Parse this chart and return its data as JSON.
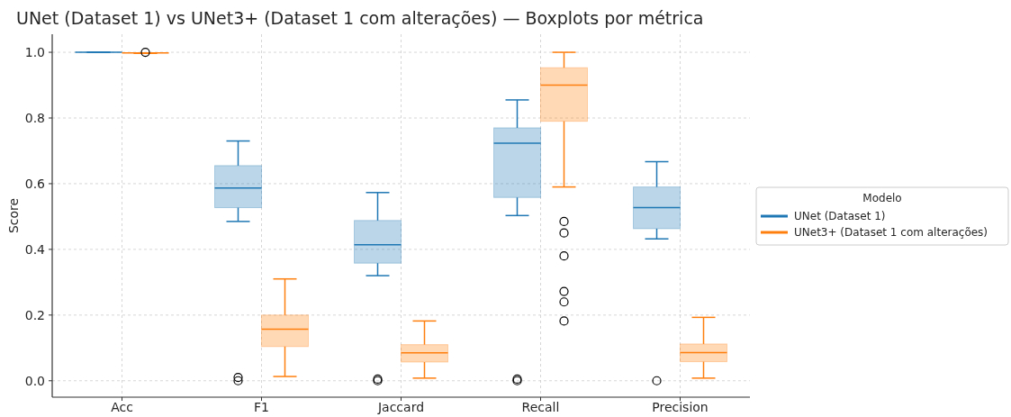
{
  "chart_data": {
    "type": "box",
    "title": "UNet (Dataset 1) vs UNet3+ (Dataset 1 com alterações) — Boxplots por métrica",
    "ylabel": "Score",
    "legend_title": "Modelo",
    "legend": "right",
    "grid": true,
    "categories": [
      "Acc",
      "F1",
      "Jaccard",
      "Recall",
      "Precision"
    ],
    "ylim": [
      -0.05,
      1.055
    ],
    "yticks": [
      {
        "value": 0,
        "label": "0.0"
      },
      {
        "value": 0.2,
        "label": "0.2"
      },
      {
        "value": 0.4,
        "label": "0.4"
      },
      {
        "value": 0.6,
        "label": "0.6"
      },
      {
        "value": 0.8,
        "label": "0.8"
      },
      {
        "value": 1,
        "label": "1.0"
      }
    ],
    "series": [
      {
        "name": "UNet (Dataset 1)",
        "color": "#1f77b4",
        "boxes": [
          {
            "low": 1,
            "q1": 1,
            "median": 1,
            "q3": 1,
            "high": 1
          },
          {
            "low": 0.485,
            "q1": 0.527,
            "median": 0.587,
            "q3": 0.655,
            "high": 0.73,
            "outliers": [
              0,
              0.01
            ]
          },
          {
            "low": 0.32,
            "q1": 0.358,
            "median": 0.414,
            "q3": 0.488,
            "high": 0.573,
            "outliers": [
              0,
              0.005
            ]
          },
          {
            "low": 0.503,
            "q1": 0.558,
            "median": 0.723,
            "q3": 0.77,
            "high": 0.855,
            "outliers": [
              0,
              0.005
            ]
          },
          {
            "low": 0.432,
            "q1": 0.463,
            "median": 0.527,
            "q3": 0.59,
            "high": 0.667,
            "outliers": [
              0
            ]
          }
        ]
      },
      {
        "name": "UNet3+ (Dataset 1 com alterações)",
        "color": "#ff7f0e",
        "boxes": [
          {
            "low": 0.997,
            "q1": 0.998,
            "median": 0.998,
            "q3": 0.998,
            "high": 0.998,
            "outliers": [
              1
            ]
          },
          {
            "low": 0.013,
            "q1": 0.104,
            "median": 0.157,
            "q3": 0.2,
            "high": 0.31
          },
          {
            "low": 0.008,
            "q1": 0.057,
            "median": 0.085,
            "q3": 0.11,
            "high": 0.182
          },
          {
            "low": 0.59,
            "q1": 0.79,
            "median": 0.9,
            "q3": 0.953,
            "high": 1,
            "outliers": [
              0.485,
              0.45,
              0.38,
              0.272,
              0.24,
              0.182
            ]
          },
          {
            "low": 0.008,
            "q1": 0.058,
            "median": 0.086,
            "q3": 0.112,
            "high": 0.193
          }
        ]
      }
    ]
  }
}
